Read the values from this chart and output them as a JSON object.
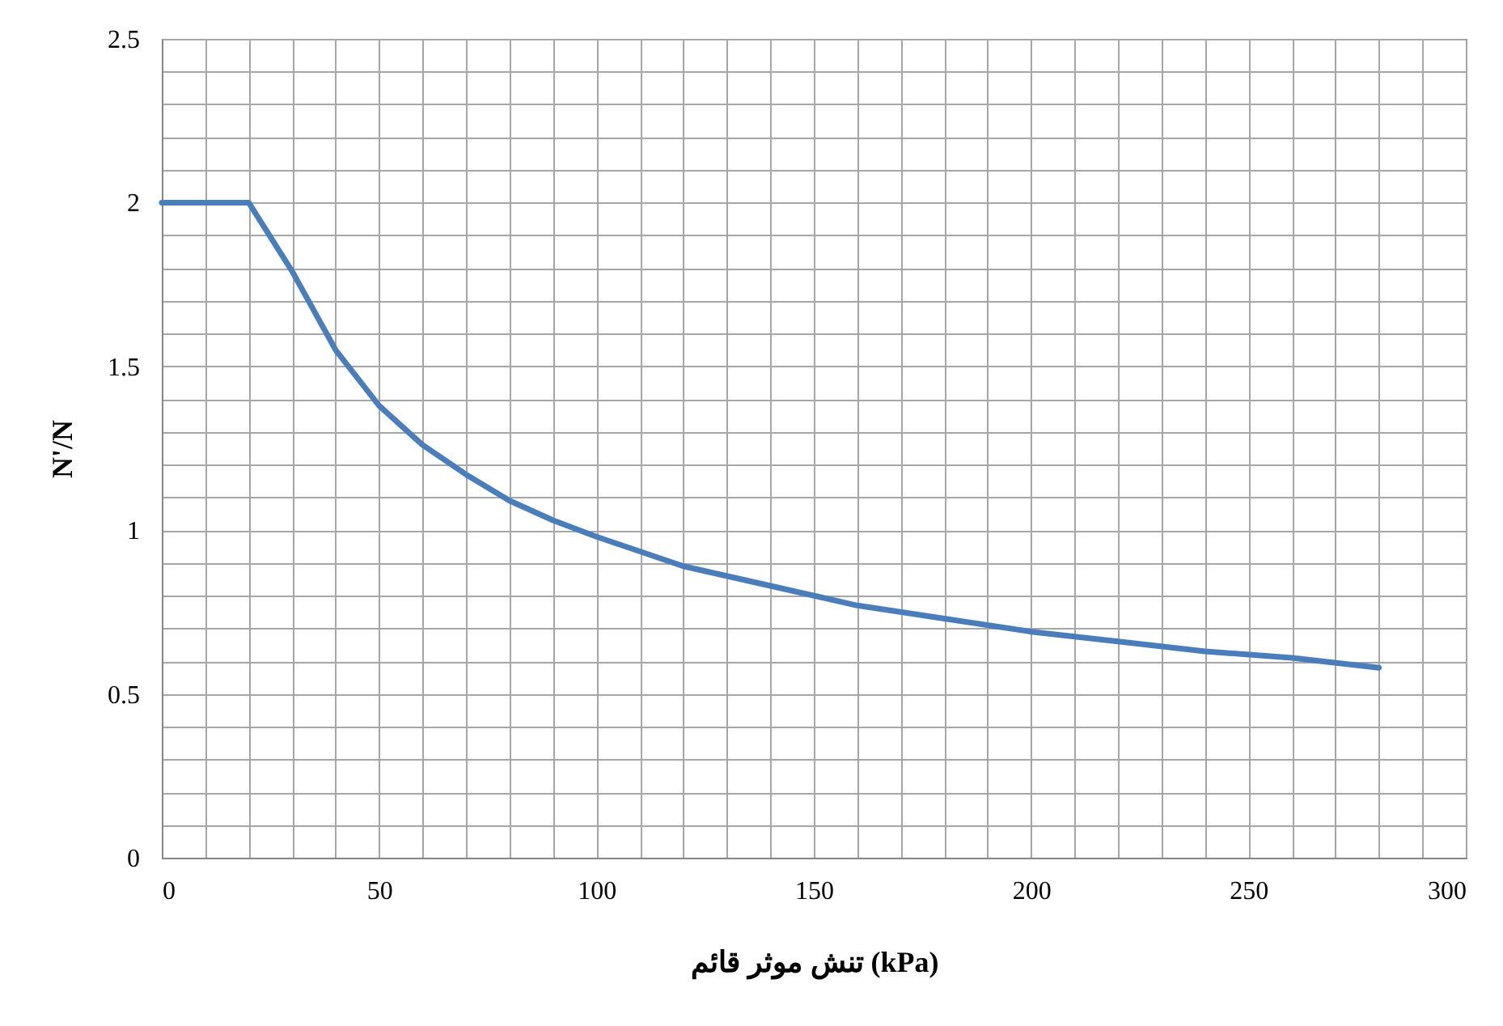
{
  "chart_data": {
    "type": "line",
    "xlabel": "تنش موثر قائم  (kPa)",
    "ylabel": "N'/N",
    "x": [
      0,
      10,
      20,
      30,
      40,
      50,
      60,
      70,
      80,
      90,
      100,
      120,
      140,
      160,
      180,
      200,
      220,
      240,
      260,
      280
    ],
    "series": [
      {
        "color": "#4a7ebb",
        "values": [
          2,
          2,
          2,
          1.79,
          1.55,
          1.38,
          1.26,
          1.17,
          1.09,
          1.03,
          0.98,
          0.89,
          0.83,
          0.77,
          0.73,
          0.69,
          0.66,
          0.63,
          0.61,
          0.58
        ]
      }
    ],
    "xlim": [
      0,
      300
    ],
    "xticks": [
      0,
      50,
      100,
      150,
      200,
      250,
      300
    ],
    "ylim": [
      0,
      2.5
    ],
    "yticks": [
      0,
      0.5,
      1,
      1.5,
      2,
      2.5
    ],
    "grid": true,
    "legend": false,
    "marker": "none",
    "line_style": "solid"
  }
}
